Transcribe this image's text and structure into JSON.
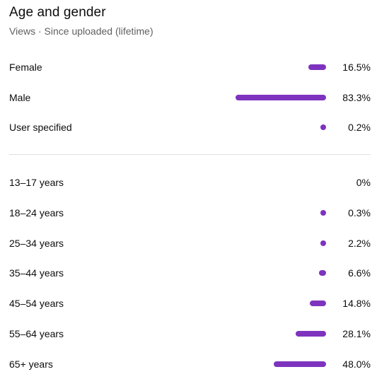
{
  "header": {
    "title": "Age and gender",
    "subtitle": "Views · Since uploaded (lifetime)"
  },
  "accent_color": "#7e33bf",
  "gender": [
    {
      "label": "Female",
      "value": "16.5%",
      "percent": 16.5
    },
    {
      "label": "Male",
      "value": "83.3%",
      "percent": 83.3
    },
    {
      "label": "User specified",
      "value": "0.2%",
      "percent": 0.2
    }
  ],
  "age": [
    {
      "label": "13–17 years",
      "value": "0%",
      "percent": 0
    },
    {
      "label": "18–24 years",
      "value": "0.3%",
      "percent": 0.3
    },
    {
      "label": "25–34 years",
      "value": "2.2%",
      "percent": 2.2
    },
    {
      "label": "35–44 years",
      "value": "6.6%",
      "percent": 6.6
    },
    {
      "label": "45–54 years",
      "value": "14.8%",
      "percent": 14.8
    },
    {
      "label": "55–64 years",
      "value": "28.1%",
      "percent": 28.1
    },
    {
      "label": "65+ years",
      "value": "48.0%",
      "percent": 48.0
    }
  ]
}
